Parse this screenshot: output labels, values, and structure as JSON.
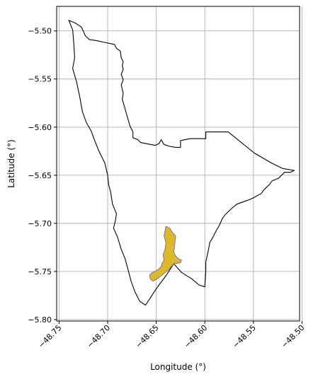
{
  "chart_data": {
    "type": "map",
    "xlabel": "Longitude (°)",
    "ylabel": "Latitude (°)",
    "xlim": [
      -48.7525,
      -48.5025
    ],
    "ylim": [
      -5.8015,
      -5.4745
    ],
    "xticks": [
      -48.75,
      -48.7,
      -48.65,
      -48.6,
      -48.55,
      -48.5
    ],
    "xtick_labels": [
      "−48.75",
      "−48.70",
      "−48.65",
      "−48.60",
      "−48.55",
      "−48.50"
    ],
    "yticks": [
      -5.5,
      -5.55,
      -5.6,
      -5.65,
      -5.7,
      -5.75,
      -5.8
    ],
    "ytick_labels": [
      "−5.50",
      "−5.55",
      "−5.60",
      "−5.65",
      "−5.70",
      "−5.75",
      "−5.80"
    ],
    "grid": true,
    "colors": {
      "boundary_stroke": "#000000",
      "highlight_fill": "#DBB92B",
      "highlight_stroke": "#6B5BA0",
      "grid": "#b0b0b0"
    },
    "boundary": [
      [
        -48.74,
        -5.489
      ],
      [
        -48.733,
        -5.492
      ],
      [
        -48.727,
        -5.496
      ],
      [
        -48.723,
        -5.505
      ],
      [
        -48.719,
        -5.509
      ],
      [
        -48.712,
        -5.51
      ],
      [
        -48.703,
        -5.512
      ],
      [
        -48.693,
        -5.514
      ],
      [
        -48.691,
        -5.518
      ],
      [
        -48.687,
        -5.521
      ],
      [
        -48.686,
        -5.528
      ],
      [
        -48.684,
        -5.532
      ],
      [
        -48.685,
        -5.536
      ],
      [
        -48.684,
        -5.54
      ],
      [
        -48.686,
        -5.545
      ],
      [
        -48.684,
        -5.551
      ],
      [
        -48.686,
        -5.556
      ],
      [
        -48.684,
        -5.565
      ],
      [
        -48.685,
        -5.571
      ],
      [
        -48.683,
        -5.578
      ],
      [
        -48.681,
        -5.585
      ],
      [
        -48.679,
        -5.592
      ],
      [
        -48.677,
        -5.599
      ],
      [
        -48.674,
        -5.605
      ],
      [
        -48.674,
        -5.611
      ],
      [
        -48.669,
        -5.613
      ],
      [
        -48.666,
        -5.616
      ],
      [
        -48.656,
        -5.618
      ],
      [
        -48.651,
        -5.619
      ],
      [
        -48.647,
        -5.617
      ],
      [
        -48.645,
        -5.613
      ],
      [
        -48.642,
        -5.618
      ],
      [
        -48.636,
        -5.62
      ],
      [
        -48.63,
        -5.621
      ],
      [
        -48.625,
        -5.621
      ],
      [
        -48.625,
        -5.614
      ],
      [
        -48.615,
        -5.612
      ],
      [
        -48.605,
        -5.612
      ],
      [
        -48.599,
        -5.612
      ],
      [
        -48.599,
        -5.605
      ],
      [
        -48.585,
        -5.605
      ],
      [
        -48.576,
        -5.605
      ],
      [
        -48.549,
        -5.627
      ],
      [
        -48.532,
        -5.637
      ],
      [
        -48.52,
        -5.643
      ],
      [
        -48.508,
        -5.645
      ],
      [
        -48.512,
        -5.647
      ],
      [
        -48.518,
        -5.647
      ],
      [
        -48.524,
        -5.653
      ],
      [
        -48.531,
        -5.656
      ],
      [
        -48.533,
        -5.659
      ],
      [
        -48.539,
        -5.665
      ],
      [
        -48.542,
        -5.669
      ],
      [
        -48.551,
        -5.674
      ],
      [
        -48.556,
        -5.676
      ],
      [
        -48.567,
        -5.68
      ],
      [
        -48.573,
        -5.685
      ],
      [
        -48.579,
        -5.691
      ],
      [
        -48.582,
        -5.695
      ],
      [
        -48.585,
        -5.702
      ],
      [
        -48.588,
        -5.707
      ],
      [
        -48.592,
        -5.715
      ],
      [
        -48.595,
        -5.72
      ],
      [
        -48.596,
        -5.726
      ],
      [
        -48.597,
        -5.731
      ],
      [
        -48.599,
        -5.74
      ],
      [
        -48.599,
        -5.75
      ],
      [
        -48.6,
        -5.766
      ],
      [
        -48.606,
        -5.764
      ],
      [
        -48.613,
        -5.758
      ],
      [
        -48.624,
        -5.751
      ],
      [
        -48.632,
        -5.742
      ],
      [
        -48.639,
        -5.753
      ],
      [
        -48.65,
        -5.768
      ],
      [
        -48.661,
        -5.785
      ],
      [
        -48.667,
        -5.781
      ],
      [
        -48.672,
        -5.771
      ],
      [
        -48.676,
        -5.76
      ],
      [
        -48.679,
        -5.748
      ],
      [
        -48.682,
        -5.737
      ],
      [
        -48.686,
        -5.727
      ],
      [
        -48.69,
        -5.714
      ],
      [
        -48.694,
        -5.705
      ],
      [
        -48.692,
        -5.697
      ],
      [
        -48.691,
        -5.69
      ],
      [
        -48.695,
        -5.68
      ],
      [
        -48.697,
        -5.667
      ],
      [
        -48.699,
        -5.66
      ],
      [
        -48.7,
        -5.65
      ],
      [
        -48.703,
        -5.637
      ],
      [
        -48.709,
        -5.625
      ],
      [
        -48.713,
        -5.615
      ],
      [
        -48.717,
        -5.604
      ],
      [
        -48.722,
        -5.595
      ],
      [
        -48.726,
        -5.584
      ],
      [
        -48.729,
        -5.567
      ],
      [
        -48.732,
        -5.553
      ],
      [
        -48.736,
        -5.539
      ],
      [
        -48.734,
        -5.528
      ],
      [
        -48.735,
        -5.511
      ],
      [
        -48.736,
        -5.499
      ],
      [
        -48.74,
        -5.489
      ]
    ],
    "highlight": [
      [
        -48.64,
        -5.703
      ],
      [
        -48.636,
        -5.705
      ],
      [
        -48.633,
        -5.71
      ],
      [
        -48.63,
        -5.713
      ],
      [
        -48.631,
        -5.722
      ],
      [
        -48.632,
        -5.73
      ],
      [
        -48.63,
        -5.734
      ],
      [
        -48.627,
        -5.737
      ],
      [
        -48.624,
        -5.738
      ],
      [
        -48.625,
        -5.741
      ],
      [
        -48.632,
        -5.742
      ],
      [
        -48.637,
        -5.748
      ],
      [
        -48.643,
        -5.753
      ],
      [
        -48.648,
        -5.757
      ],
      [
        -48.653,
        -5.76
      ],
      [
        -48.656,
        -5.758
      ],
      [
        -48.657,
        -5.754
      ],
      [
        -48.654,
        -5.751
      ],
      [
        -48.648,
        -5.748
      ],
      [
        -48.645,
        -5.745
      ],
      [
        -48.644,
        -5.741
      ],
      [
        -48.642,
        -5.739
      ],
      [
        -48.643,
        -5.733
      ],
      [
        -48.641,
        -5.727
      ],
      [
        -48.64,
        -5.72
      ],
      [
        -48.642,
        -5.713
      ],
      [
        -48.64,
        -5.703
      ]
    ]
  }
}
